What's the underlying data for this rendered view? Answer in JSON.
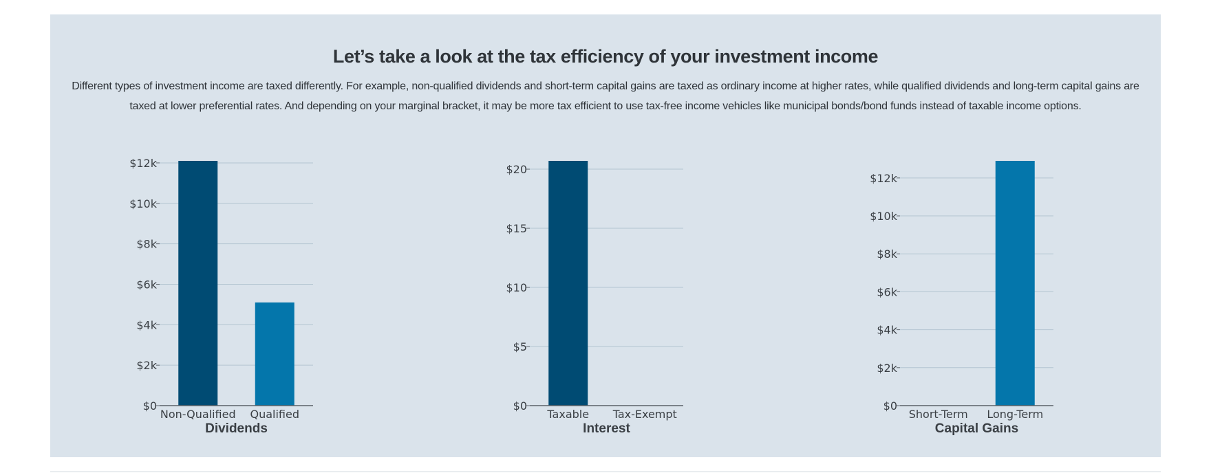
{
  "header": {
    "title": "Let’s take a look at the tax efficiency of your investment income",
    "description": "Different types of investment income are taxed differently. For example, non-qualified dividends and short-term capital gains are taxed as ordinary income at higher rates, while qualified dividends and long-term capital gains are taxed at lower preferential rates. And depending on your marginal bracket, it may be more tax efficient to use tax-free income vehicles like municipal bonds/bond funds instead of taxable income options."
  },
  "colors": {
    "panel_background": "#dae3eb",
    "dark_bar": "#004b73",
    "light_bar": "#0476ab",
    "gridline": "#b3c5d1",
    "text": "#2f3439"
  },
  "chart_data": [
    {
      "type": "bar",
      "xlabel": "Dividends",
      "categories": [
        "Non-Qualified",
        "Qualified"
      ],
      "values": [
        12100,
        5100
      ],
      "bar_colors": [
        "#004b73",
        "#0476ab"
      ],
      "ylim": [
        0,
        12100
      ],
      "yticks": [
        0,
        2000,
        4000,
        6000,
        8000,
        10000,
        12000
      ],
      "ytick_labels": [
        "$0",
        "$2k",
        "$4k",
        "$6k",
        "$8k",
        "$10k",
        "$12k"
      ],
      "grid": true
    },
    {
      "type": "bar",
      "xlabel": "Interest",
      "categories": [
        "Taxable",
        "Tax-Exempt"
      ],
      "values": [
        20.7,
        0
      ],
      "bar_colors": [
        "#004b73",
        "#0476ab"
      ],
      "ylim": [
        0,
        20.7
      ],
      "yticks": [
        0,
        5,
        10,
        15,
        20
      ],
      "ytick_labels": [
        "$0",
        "$5",
        "$10",
        "$15",
        "$20"
      ],
      "grid": true
    },
    {
      "type": "bar",
      "xlabel": "Capital Gains",
      "categories": [
        "Short-Term",
        "Long-Term"
      ],
      "values": [
        0,
        12900
      ],
      "bar_colors": [
        "#004b73",
        "#0476ab"
      ],
      "ylim": [
        0,
        12900
      ],
      "yticks": [
        0,
        2000,
        4000,
        6000,
        8000,
        10000,
        12000
      ],
      "ytick_labels": [
        "$0",
        "$2k",
        "$4k",
        "$6k",
        "$8k",
        "$10k",
        "$12k"
      ],
      "grid": true
    }
  ]
}
